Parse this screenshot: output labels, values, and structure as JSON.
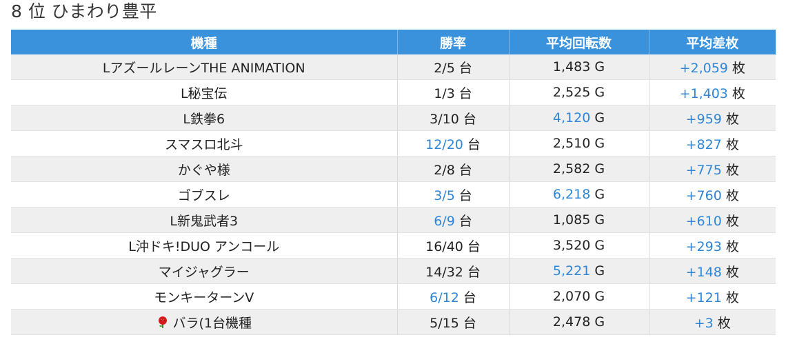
{
  "heading": "8 位 ひまわり豊平",
  "columns": [
    "機種",
    "勝率",
    "平均回転数",
    "平均差枚"
  ],
  "rows": [
    {
      "name": "LアズールレーンTHE ANIMATION",
      "winrate": "2/5",
      "winrate_unit": "台",
      "winrate_highlight": false,
      "spins": "1,483",
      "spins_unit": "G",
      "spins_highlight": false,
      "diff": "+2,059",
      "diff_unit": "枚"
    },
    {
      "name": "L秘宝伝",
      "winrate": "1/3",
      "winrate_unit": "台",
      "winrate_highlight": false,
      "spins": "2,525",
      "spins_unit": "G",
      "spins_highlight": false,
      "diff": "+1,403",
      "diff_unit": "枚"
    },
    {
      "name": "L鉄拳6",
      "winrate": "3/10",
      "winrate_unit": "台",
      "winrate_highlight": false,
      "spins": "4,120",
      "spins_unit": "G",
      "spins_highlight": true,
      "diff": "+959",
      "diff_unit": "枚"
    },
    {
      "name": "スマスロ北斗",
      "winrate": "12/20",
      "winrate_unit": "台",
      "winrate_highlight": true,
      "spins": "2,510",
      "spins_unit": "G",
      "spins_highlight": false,
      "diff": "+827",
      "diff_unit": "枚"
    },
    {
      "name": "かぐや様",
      "winrate": "2/8",
      "winrate_unit": "台",
      "winrate_highlight": false,
      "spins": "2,582",
      "spins_unit": "G",
      "spins_highlight": false,
      "diff": "+775",
      "diff_unit": "枚"
    },
    {
      "name": "ゴブスレ",
      "winrate": "3/5",
      "winrate_unit": "台",
      "winrate_highlight": true,
      "spins": "6,218",
      "spins_unit": "G",
      "spins_highlight": true,
      "diff": "+760",
      "diff_unit": "枚"
    },
    {
      "name": "L新鬼武者3",
      "winrate": "6/9",
      "winrate_unit": "台",
      "winrate_highlight": true,
      "spins": "1,085",
      "spins_unit": "G",
      "spins_highlight": false,
      "diff": "+610",
      "diff_unit": "枚"
    },
    {
      "name": "L沖ドキ!DUO アンコール",
      "winrate": "16/40",
      "winrate_unit": "台",
      "winrate_highlight": false,
      "spins": "3,520",
      "spins_unit": "G",
      "spins_highlight": false,
      "diff": "+293",
      "diff_unit": "枚"
    },
    {
      "name": "マイジャグラー",
      "winrate": "14/32",
      "winrate_unit": "台",
      "winrate_highlight": false,
      "spins": "5,221",
      "spins_unit": "G",
      "spins_highlight": true,
      "diff": "+148",
      "diff_unit": "枚"
    },
    {
      "name": "モンキーターンV",
      "winrate": "6/12",
      "winrate_unit": "台",
      "winrate_highlight": true,
      "spins": "2,070",
      "spins_unit": "G",
      "spins_highlight": false,
      "diff": "+121",
      "diff_unit": "枚"
    },
    {
      "name": "バラ(1台機種",
      "icon": "rose-icon",
      "winrate": "5/15",
      "winrate_unit": "台",
      "winrate_highlight": false,
      "spins": "2,478",
      "spins_unit": "G",
      "spins_highlight": false,
      "diff": "+3",
      "diff_unit": "枚"
    }
  ],
  "colors": {
    "header_bg": "#3a92dd",
    "highlight": "#2f86d6",
    "stripe": "#efefef"
  }
}
